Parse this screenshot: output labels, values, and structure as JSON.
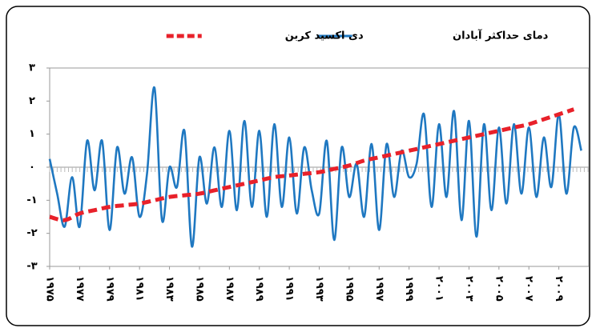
{
  "chart_data": {
    "type": "line",
    "series": [
      {
        "name": "دمای حداکثر آبادان",
        "color": "#1f78c1",
        "style": "solid",
        "x": [
          1975,
          1975.5,
          1976,
          1976.5,
          1977,
          1977.5,
          1978,
          1978.5,
          1979,
          1979.5,
          1980,
          1980.5,
          1981,
          1981.5,
          1982,
          1982.5,
          1983,
          1983.5,
          1984,
          1984.5,
          1985,
          1985.5,
          1986,
          1986.5,
          1987,
          1987.5,
          1988,
          1988.5,
          1989,
          1989.5,
          1990,
          1990.5,
          1991,
          1991.5,
          1992,
          1992.5,
          1993,
          1993.5,
          1994,
          1994.5,
          1995,
          1995.5,
          1996,
          1996.5,
          1997,
          1997.5,
          1998,
          1998.5,
          1999,
          1999.5,
          2000,
          2000.5,
          2001,
          2001.5,
          2002,
          2002.5,
          2003,
          2003.5,
          2004,
          2004.5,
          2005,
          2005.5,
          2006,
          2006.5,
          2007,
          2007.5,
          2008,
          2008.5,
          2009,
          2009.5,
          2010,
          2010.5
        ],
        "values": [
          0.25,
          -0.8,
          -1.8,
          -0.3,
          -1.8,
          0.8,
          -0.7,
          0.8,
          -1.9,
          0.6,
          -0.8,
          0.3,
          -1.5,
          -0.2,
          2.4,
          -1.6,
          0,
          -0.6,
          1.1,
          -2.4,
          0.3,
          -1.1,
          0.6,
          -1.2,
          1.1,
          -1.3,
          1.4,
          -1.2,
          1.1,
          -1.5,
          1.3,
          -1.2,
          0.9,
          -1.4,
          0.6,
          -0.7,
          -1.4,
          0.8,
          -2.2,
          0.6,
          -0.9,
          0.1,
          -1.5,
          0.7,
          -1.9,
          0.7,
          -0.9,
          0.5,
          -0.3,
          0.1,
          1.6,
          -1.2,
          1.3,
          -0.9,
          1.7,
          -1.6,
          1.4,
          -2.1,
          1.3,
          -1.3,
          1.2,
          -1.1,
          1.3,
          -0.8,
          1.2,
          -0.9,
          0.9,
          -0.6,
          1.6,
          -0.8,
          1.2,
          0.5
        ]
      },
      {
        "name": "دی اکسید کربن",
        "color": "#e8212a",
        "style": "dashed",
        "x": [
          1975,
          1976,
          1977,
          1978,
          1979,
          1980,
          1981,
          1982,
          1983,
          1984,
          1985,
          1986,
          1987,
          1988,
          1989,
          1990,
          1991,
          1992,
          1993,
          1994,
          1995,
          1996,
          1997,
          1998,
          1999,
          2000,
          2001,
          2002,
          2003,
          2004,
          2005,
          2006,
          2007,
          2008,
          2009,
          2010
        ],
        "values": [
          -1.5,
          -1.6,
          -1.4,
          -1.3,
          -1.2,
          -1.15,
          -1.1,
          -1.0,
          -0.9,
          -0.85,
          -0.8,
          -0.7,
          -0.6,
          -0.5,
          -0.4,
          -0.3,
          -0.25,
          -0.2,
          -0.15,
          -0.05,
          0.05,
          0.2,
          0.3,
          0.4,
          0.5,
          0.6,
          0.7,
          0.8,
          0.9,
          1.0,
          1.1,
          1.2,
          1.3,
          1.45,
          1.6,
          1.75
        ]
      }
    ],
    "xlim": [
      1975,
      2011
    ],
    "xticks": [
      {
        "value": 1975,
        "label": "۱۹۷۵"
      },
      {
        "value": 1977,
        "label": "۱۹۷۷"
      },
      {
        "value": 1979,
        "label": "۱۹۷۹"
      },
      {
        "value": 1981,
        "label": "۱۹۸۱"
      },
      {
        "value": 1983,
        "label": "۱۹۸۳"
      },
      {
        "value": 1985,
        "label": "۱۹۸۵"
      },
      {
        "value": 1987,
        "label": "۱۹۸۷"
      },
      {
        "value": 1989,
        "label": "۱۹۸۹"
      },
      {
        "value": 1991,
        "label": "۱۹۹۱"
      },
      {
        "value": 1993,
        "label": "۱۹۹۳"
      },
      {
        "value": 1995,
        "label": "۱۹۹۵"
      },
      {
        "value": 1997,
        "label": "۱۹۹۷"
      },
      {
        "value": 1999,
        "label": "۱۹۹۹"
      },
      {
        "value": 2001,
        "label": "۲۰۰۱"
      },
      {
        "value": 2003,
        "label": "۲۰۰۳"
      },
      {
        "value": 2005,
        "label": "۲۰۰۵"
      },
      {
        "value": 2007,
        "label": "۲۰۰۷"
      },
      {
        "value": 2009,
        "label": "۲۰۰۹"
      }
    ],
    "ylim": [
      -3,
      3
    ],
    "yticks": [
      {
        "value": 3,
        "label": "۳"
      },
      {
        "value": 2,
        "label": "۲"
      },
      {
        "value": 1,
        "label": "۱"
      },
      {
        "value": 0,
        "label": "۰"
      },
      {
        "value": -1,
        "label": "-۱"
      },
      {
        "value": -2,
        "label": "-۲"
      },
      {
        "value": -3,
        "label": "-۳"
      }
    ],
    "legend": "top"
  }
}
